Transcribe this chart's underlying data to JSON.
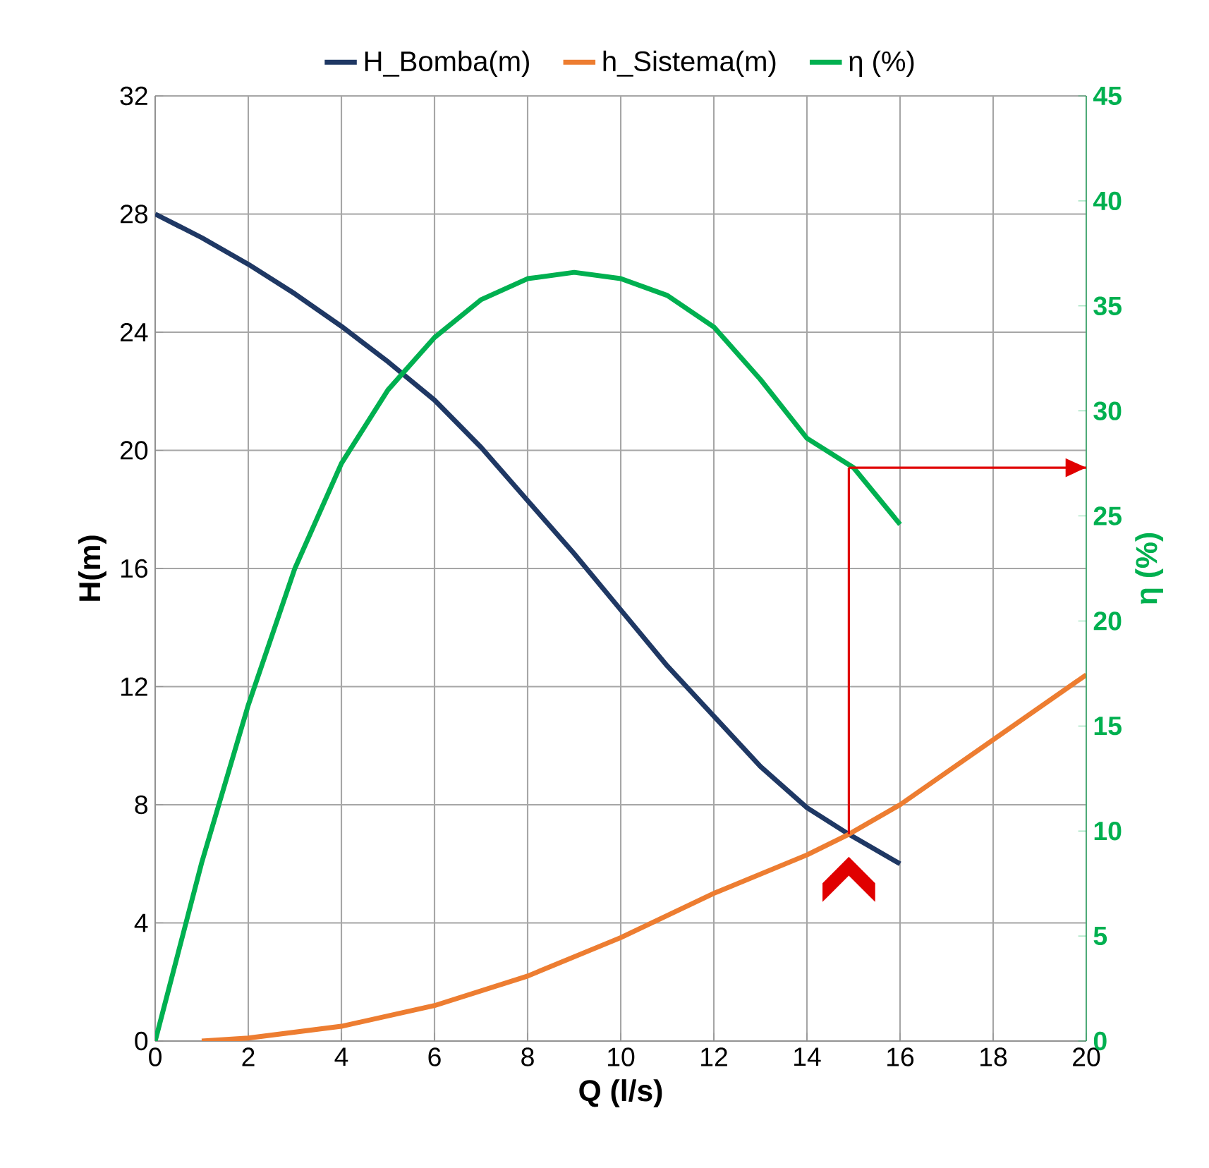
{
  "chart_data": {
    "type": "line",
    "xlabel": "Q (l/s)",
    "ylabel": "H(m)",
    "y2label": "η (%)",
    "xlim": [
      0,
      20
    ],
    "xticks": [
      0,
      2,
      4,
      6,
      8,
      10,
      12,
      14,
      16,
      18,
      20
    ],
    "ylim": [
      0,
      32
    ],
    "yticks": [
      0,
      4,
      8,
      12,
      16,
      20,
      24,
      28,
      32
    ],
    "y2lim": [
      0,
      45
    ],
    "y2ticks": [
      0,
      5,
      10,
      15,
      20,
      25,
      30,
      35,
      40,
      45
    ],
    "grid": true,
    "legend": "top",
    "marker": "none",
    "line_style": "solid",
    "series": [
      {
        "name": "H_Bomba(m)",
        "color": "#1f3864",
        "x": [
          0,
          1,
          2,
          3,
          4,
          5,
          6,
          7,
          8,
          9,
          10,
          11,
          12,
          13,
          14,
          14.9,
          16
        ],
        "values": [
          28,
          27.2,
          26.3,
          25.3,
          24.2,
          23,
          21.7,
          20.1,
          18.3,
          16.5,
          14.6,
          12.7,
          11,
          9.3,
          7.9,
          7,
          6
        ]
      },
      {
        "name": "h_Sistema(m)",
        "color": "#ed7d31",
        "x": [
          1,
          2,
          4,
          6,
          8,
          10,
          12,
          14,
          14.9,
          16,
          18,
          20
        ],
        "values": [
          0,
          0.1,
          0.5,
          1.2,
          2.2,
          3.5,
          5,
          6.3,
          7,
          8,
          10.2,
          12.4
        ]
      },
      {
        "name": "η (%)",
        "color": "#00b050",
        "axis": "y2",
        "x": [
          0,
          1,
          2,
          3,
          4,
          5,
          6,
          7,
          8,
          9,
          10,
          11,
          12,
          13,
          14,
          15,
          16
        ],
        "values": [
          0,
          8.5,
          16,
          22.5,
          27.5,
          31,
          33.5,
          35.3,
          36.3,
          36.6,
          36.3,
          35.5,
          34,
          31.5,
          28.7,
          27.3,
          24.6
        ]
      }
    ],
    "ref_lines": [
      {
        "axis": "x",
        "value": 14.9,
        "color": "#e00000"
      },
      {
        "axis": "y2",
        "value": 27.3,
        "color": "#e00000"
      }
    ]
  }
}
